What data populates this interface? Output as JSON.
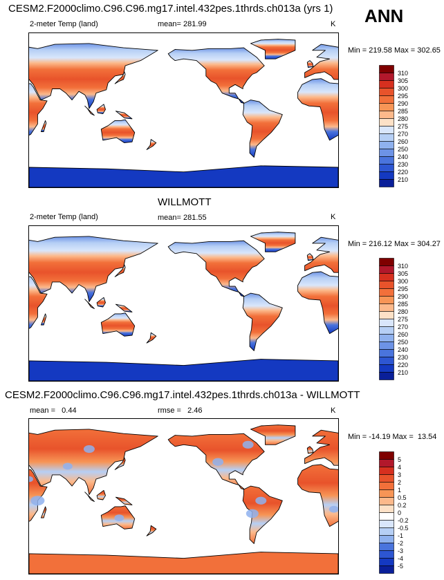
{
  "season": "ANN",
  "panels": [
    {
      "title": "CESM2.F2000climo.C96.C96.mg17.intel.432pes.1thrds.ch013a (yrs 1)",
      "left_label": "2-meter Temp (land)",
      "center_label": "mean= 281.99",
      "units": "K",
      "minmax": "Min = 219.58 Max = 302.65",
      "colorbar_labels": [
        "310",
        "305",
        "300",
        "295",
        "290",
        "285",
        "280",
        "275",
        "270",
        "260",
        "250",
        "240",
        "230",
        "220",
        "210"
      ],
      "palette": [
        "#7f0000",
        "#b2182b",
        "#d6301f",
        "#e8532b",
        "#f2703a",
        "#f79556",
        "#fcb98b",
        "#fde1c7",
        "#d9e6fb",
        "#b6cff5",
        "#8fb1ee",
        "#6d93e6",
        "#4a74dd",
        "#2d56d2",
        "#1439c1",
        "#0a1f99"
      ],
      "type": "absolute"
    },
    {
      "title": "WILLMOTT",
      "left_label": "2-meter Temp (land)",
      "center_label": "mean= 281.55",
      "units": "K",
      "minmax": "Min = 216.12 Max = 304.27",
      "colorbar_labels": [
        "310",
        "305",
        "300",
        "295",
        "290",
        "285",
        "280",
        "275",
        "270",
        "260",
        "250",
        "240",
        "230",
        "220",
        "210"
      ],
      "palette": [
        "#7f0000",
        "#b2182b",
        "#d6301f",
        "#e8532b",
        "#f2703a",
        "#f79556",
        "#fcb98b",
        "#fde1c7",
        "#d9e6fb",
        "#b6cff5",
        "#8fb1ee",
        "#6d93e6",
        "#4a74dd",
        "#2d56d2",
        "#1439c1",
        "#0a1f99"
      ],
      "type": "absolute"
    },
    {
      "title": "CESM2.F2000climo.C96.C96.mg17.intel.432pes.1thrds.ch013a - WILLMOTT",
      "left_label": "mean =   0.44",
      "center_label": "rmse =   2.46",
      "units": "K",
      "minmax": "Min = -14.19 Max =  13.54",
      "colorbar_labels": [
        "5",
        "4",
        "3",
        "2",
        "1",
        "0.5",
        "0.2",
        "0",
        "-0.2",
        "-0.5",
        "-1",
        "-2",
        "-3",
        "-4",
        "-5"
      ],
      "palette": [
        "#7f0000",
        "#b2182b",
        "#d6301f",
        "#e8532b",
        "#f2703a",
        "#f79556",
        "#fcb98b",
        "#fde1c7",
        "#ffffff",
        "#d9e6fb",
        "#b6cff5",
        "#8fb1ee",
        "#4a74dd",
        "#2d56d2",
        "#1439c1",
        "#0a1f99"
      ],
      "type": "difference"
    }
  ]
}
